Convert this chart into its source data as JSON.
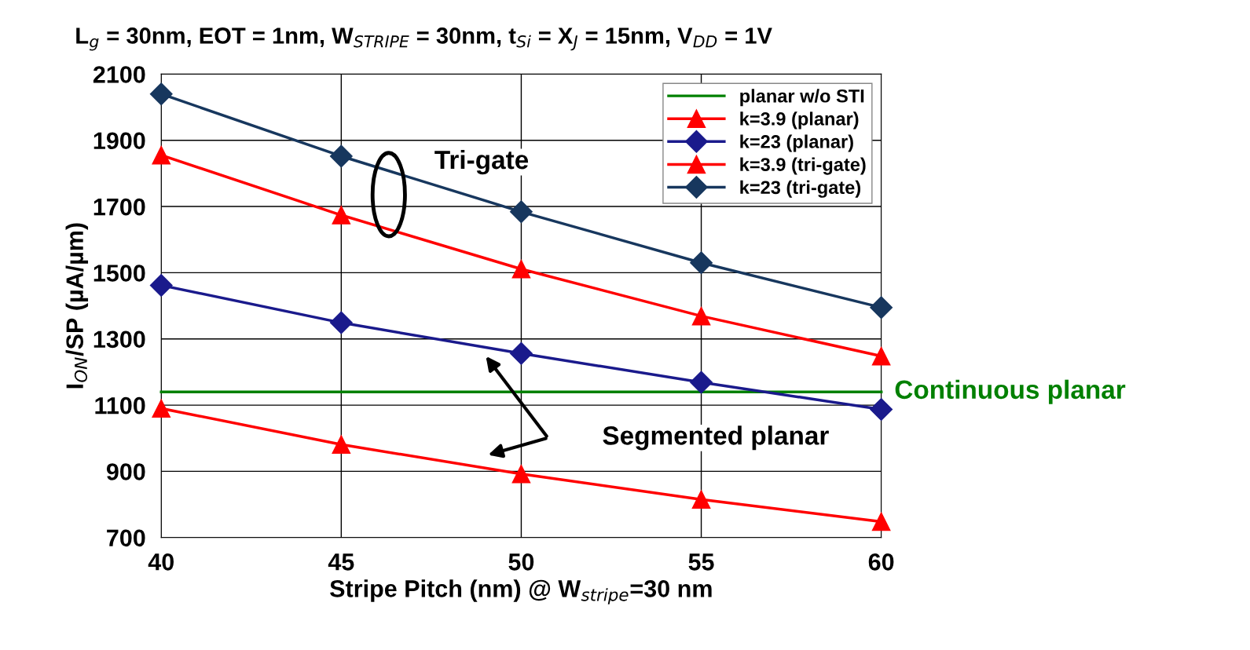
{
  "chart_data": {
    "type": "line",
    "title": "L$_{g}$ = 30nm, EOT = 1nm, W$_{STRIPE}$ = 30nm, t$_{Si}$ = X$_{J}$ = 15nm, V$_{DD}$ = 1V",
    "xlabel": "Stripe Pitch (nm) @ W$_{stripe}$=30 nm",
    "ylabel": "I$_{ON}$/SP (µA/µm)",
    "x": [
      40,
      45,
      50,
      55,
      60
    ],
    "series": [
      {
        "name": "planar w/o STI",
        "color": "#008000",
        "values": [
          1140,
          1140,
          1140,
          1140,
          1140
        ],
        "marker": "none"
      },
      {
        "name": "k=3.9 (planar)",
        "color": "#ff0000",
        "values": [
          1090,
          981,
          892,
          815,
          748
        ],
        "marker": "triangle"
      },
      {
        "name": "k=23 (planar)",
        "color": "#1a1a8c",
        "values": [
          1462,
          1349,
          1256,
          1169,
          1087
        ],
        "marker": "diamond"
      },
      {
        "name": "k=3.9 (tri-gate)",
        "color": "#ff0000",
        "values": [
          1855,
          1674,
          1511,
          1369,
          1248
        ],
        "marker": "triangle"
      },
      {
        "name": "k=23 (tri-gate)",
        "color": "#17375e",
        "values": [
          2040,
          1852,
          1684,
          1530,
          1395
        ],
        "marker": "diamond"
      }
    ],
    "xlim": [
      40,
      60
    ],
    "xticks": [
      40,
      45,
      50,
      55,
      60
    ],
    "ylim": [
      700,
      2100
    ],
    "yticks": [
      700,
      900,
      1100,
      1300,
      1500,
      1700,
      1900,
      2100
    ],
    "annotations": [
      "Tri-gate",
      "Segmented planar",
      "Continuous planar"
    ],
    "grid": true,
    "legend": "top right"
  }
}
